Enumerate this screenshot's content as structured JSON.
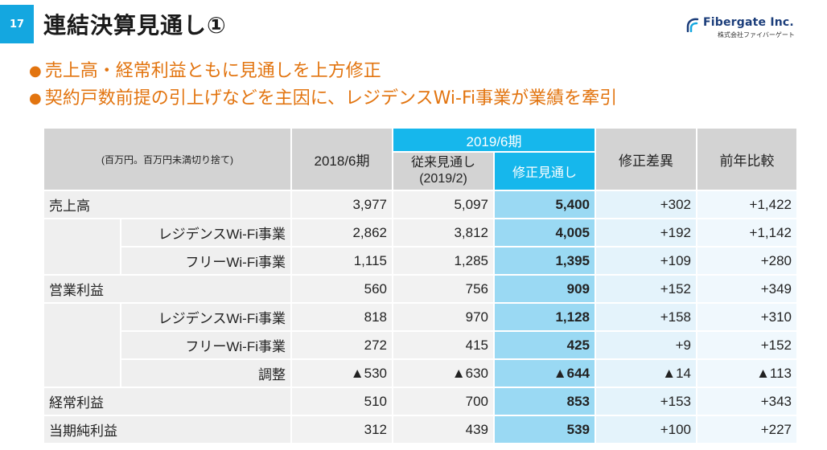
{
  "header": {
    "page_number": "17",
    "title": "連結決算見通し①",
    "logo_name": "Fibergate Inc.",
    "logo_sub": "株式会社ファイバーゲート",
    "accent_color": "#14a7e0",
    "bullet_color": "#e2740f"
  },
  "bullets": [
    "売上高・経常利益ともに見通しを上方修正",
    "契約戸数前提の引上げなどを主因に、レジデンスWi-Fi事業が業績を牽引"
  ],
  "table": {
    "unit_note": "(百万円。百万円未満切り捨て)",
    "col_fy2018": "2018/6期",
    "col_fy2019": "2019/6期",
    "col_prev_forecast": "従来見通し\n(2019/2)",
    "col_revised": "修正見通し",
    "col_diff": "修正差異",
    "col_yoy": "前年比較",
    "rows": [
      {
        "label": "売上高",
        "type": "main",
        "values": [
          "3,977",
          "5,097",
          "5,400",
          "+302",
          "+1,422"
        ]
      },
      {
        "label": "レジデンスWi-Fi事業",
        "type": "sub",
        "values": [
          "2,862",
          "3,812",
          "4,005",
          "+192",
          "+1,142"
        ]
      },
      {
        "label": "フリーWi-Fi事業",
        "type": "sub",
        "values": [
          "1,115",
          "1,285",
          "1,395",
          "+109",
          "+280"
        ]
      },
      {
        "label": "営業利益",
        "type": "main",
        "values": [
          "560",
          "756",
          "909",
          "+152",
          "+349"
        ]
      },
      {
        "label": "レジデンスWi-Fi事業",
        "type": "sub",
        "values": [
          "818",
          "970",
          "1,128",
          "+158",
          "+310"
        ]
      },
      {
        "label": "フリーWi-Fi事業",
        "type": "sub",
        "values": [
          "272",
          "415",
          "425",
          "+9",
          "+152"
        ]
      },
      {
        "label": "調整",
        "type": "sub",
        "values": [
          "▲530",
          "▲630",
          "▲644",
          "▲14",
          "▲113"
        ]
      },
      {
        "label": "経常利益",
        "type": "main",
        "values": [
          "510",
          "700",
          "853",
          "+153",
          "+343"
        ]
      },
      {
        "label": "当期純利益",
        "type": "main",
        "values": [
          "312",
          "439",
          "539",
          "+100",
          "+227"
        ]
      }
    ]
  }
}
